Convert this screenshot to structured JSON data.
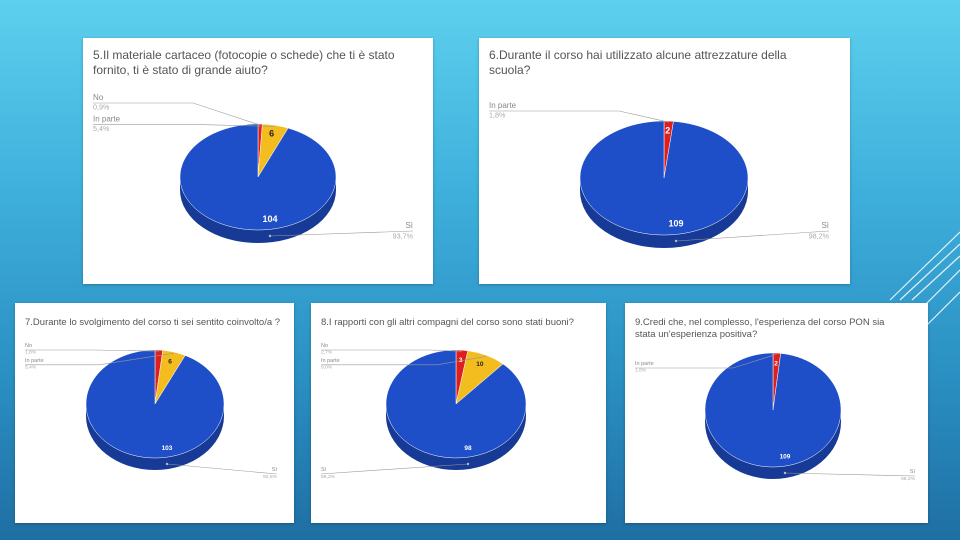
{
  "colors": {
    "si": "#1f4fc8",
    "si_dark": "#163a95",
    "in_parte": "#f3bd20",
    "in_parte_dark": "#b88c10",
    "no": "#dd1f1f",
    "no_dark": "#9e1414"
  },
  "chart_data": [
    {
      "type": "pie",
      "title": "5.Il materiale cartaceo (fotocopie o schede) che ti è stato fornito, ti è stato di grande aiuto?",
      "slices": [
        {
          "key": "no",
          "label": "No",
          "pct": "0,9%",
          "value": 1,
          "value_label": ""
        },
        {
          "key": "in_parte",
          "label": "In parte",
          "pct": "5,4%",
          "value": 6,
          "value_label": "6"
        },
        {
          "key": "si",
          "label": "Sì",
          "pct": "93,7%",
          "value": 104,
          "value_label": "104"
        }
      ]
    },
    {
      "type": "pie",
      "title": "6.Durante il corso hai utilizzato alcune attrezzature della scuola?",
      "slices": [
        {
          "key": "no",
          "label": "In parte",
          "pct": "1,8%",
          "value": 2,
          "value_label": "2"
        },
        {
          "key": "si",
          "label": "Sì",
          "pct": "98,2%",
          "value": 109,
          "value_label": "109"
        }
      ]
    },
    {
      "type": "pie",
      "title": "7.Durante lo svolgimento del corso ti sei sentito coinvolto/a ?",
      "slices": [
        {
          "key": "no",
          "label": "No",
          "pct": "1,8%",
          "value": 2,
          "value_label": ""
        },
        {
          "key": "in_parte",
          "label": "In parte",
          "pct": "5,4%",
          "value": 6,
          "value_label": "6"
        },
        {
          "key": "si",
          "label": "Sì",
          "pct": "92,8%",
          "value": 103,
          "value_label": "103"
        }
      ]
    },
    {
      "type": "pie",
      "title": "8.I rapporti con gli altri compagni del corso sono stati buoni?",
      "slices": [
        {
          "key": "no",
          "label": "No",
          "pct": "2,7%",
          "value": 3,
          "value_label": "3"
        },
        {
          "key": "in_parte",
          "label": "In parte",
          "pct": "9,0%",
          "value": 10,
          "value_label": "10"
        },
        {
          "key": "si",
          "label": "Sì",
          "pct": "88,3%",
          "value": 98,
          "value_label": "98"
        }
      ]
    },
    {
      "type": "pie",
      "title": "9.Credi che, nel complesso, l'esperienza del corso PON sia stata un'esperienza positiva?",
      "slices": [
        {
          "key": "no",
          "label": "In parte",
          "pct": "1,8%",
          "value": 2,
          "value_label": "2"
        },
        {
          "key": "si",
          "label": "Sì",
          "pct": "98,2%",
          "value": 109,
          "value_label": "109"
        }
      ]
    }
  ]
}
